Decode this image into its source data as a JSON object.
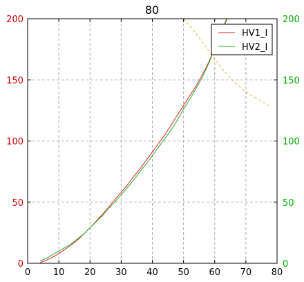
{
  "chart_data": {
    "type": "line",
    "title": "80",
    "xlabel": "",
    "ylabel": "",
    "xlim": [
      0,
      80
    ],
    "ylim": [
      0,
      200
    ],
    "ylim_right": [
      0,
      200
    ],
    "grid": true,
    "x_ticks": [
      "0",
      "10",
      "20",
      "30",
      "40",
      "50",
      "60",
      "70",
      "80"
    ],
    "y_ticks_left": [
      "0",
      "50",
      "100",
      "150",
      "200"
    ],
    "y_ticks_right": [
      "0",
      "50",
      "100",
      "150",
      "200"
    ],
    "colors": {
      "series1": "#dd2222",
      "series2": "#22aa22",
      "right_axis": "#00aa00",
      "annotation": "#00aa00",
      "dashed": "#f0b030"
    },
    "legend_position": "top-right",
    "annotation": "0",
    "series": [
      {
        "name": "HV1_I",
        "x": [
          4,
          6,
          8,
          10,
          12,
          14,
          16,
          18,
          20,
          22,
          24,
          26,
          28,
          30,
          32,
          34,
          36,
          38,
          40,
          42,
          44,
          46,
          48,
          50,
          52,
          54,
          56,
          58,
          60,
          62,
          64
        ],
        "values": [
          0.5,
          2.5,
          5,
          8,
          11.5,
          15,
          19,
          24,
          29,
          34.5,
          40,
          46,
          52,
          58,
          64,
          71,
          77,
          84,
          91,
          98,
          105,
          113,
          121,
          129,
          137,
          145,
          154,
          164,
          176,
          188,
          200
        ]
      },
      {
        "name": "HV2_I",
        "x": [
          4,
          6,
          8,
          10,
          12,
          14,
          16,
          18,
          20,
          22,
          24,
          26,
          28,
          30,
          32,
          34,
          36,
          38,
          40,
          42,
          44,
          46,
          48,
          50,
          52,
          54,
          56,
          58,
          60,
          62,
          64
        ],
        "values": [
          2,
          4,
          7,
          10,
          13,
          16,
          20,
          24,
          29,
          34,
          39,
          45,
          50,
          56,
          62,
          68,
          75,
          81,
          88,
          95,
          102,
          109,
          117,
          126,
          134,
          143,
          152,
          163,
          176,
          189,
          201
        ]
      },
      {
        "name": "",
        "style": "dashed",
        "x": [
          50,
          54,
          58,
          62,
          66,
          70,
          74,
          78
        ],
        "values": [
          200,
          188,
          174,
          160,
          149,
          140,
          134,
          128
        ]
      }
    ]
  }
}
